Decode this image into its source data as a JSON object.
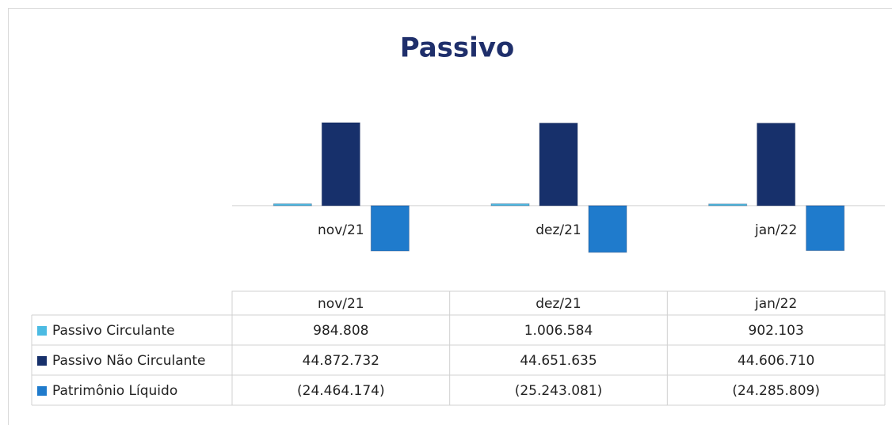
{
  "chart_data": {
    "type": "bar",
    "title": "Passivo",
    "categories": [
      "nov/21",
      "dez/21",
      "jan/22"
    ],
    "series": [
      {
        "name": "Passivo Circulante",
        "color": "#4cbbe3",
        "values": [
          984808,
          1006584,
          902103
        ],
        "value_labels": [
          "984.808",
          "1.006.584",
          "902.103"
        ]
      },
      {
        "name": "Passivo Não Circulante",
        "color": "#17306b",
        "values": [
          44872732,
          44651635,
          44606710
        ],
        "value_labels": [
          "44.872.732",
          "44.651.635",
          "44.606.710"
        ]
      },
      {
        "name": "Patrimônio Líquido",
        "color": "#1f7bcc",
        "values": [
          -24464174,
          -25243081,
          -24285809
        ],
        "value_labels": [
          "(24.464.174)",
          "(25.243.081)",
          "(24.285.809)"
        ]
      }
    ],
    "ylim": [
      -30000000,
      50000000
    ]
  }
}
